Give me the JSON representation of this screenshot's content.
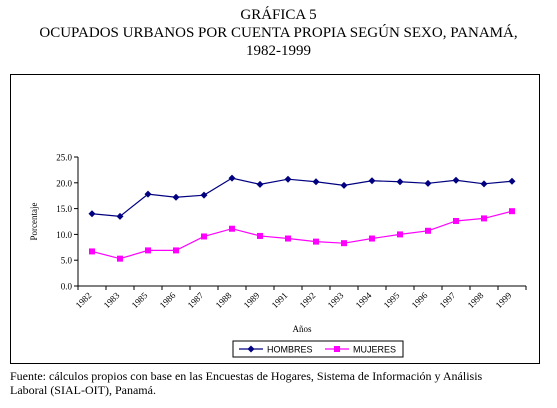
{
  "header": {
    "title_line1": "GRÁFICA 5",
    "title_line2": "OCUPADOS URBANOS POR CUENTA PROPIA SEGÚN SEXO, PANAMÁ,",
    "title_line3": "1982-1999"
  },
  "footnote": {
    "line1": "Fuente: cálculos propios con base en las Encuestas de Hogares, Sistema de Información y Análisis",
    "line2": "Laboral (SIAL-OIT), Panamá."
  },
  "colors": {
    "hombres": "#000080",
    "mujeres": "#ff00ff",
    "axis": "#000000"
  },
  "chart_data": {
    "type": "line",
    "title": "OCUPADOS URBANOS POR CUENTA PROPIA SEGÚN SEXO, PANAMÁ, 1982-1999",
    "xlabel": "Años",
    "ylabel": "Porcentaje",
    "categories": [
      "1982",
      "1983",
      "1985",
      "1986",
      "1987",
      "1988",
      "1989",
      "1991",
      "1992",
      "1993",
      "1994",
      "1995",
      "1996",
      "1997",
      "1998",
      "1999"
    ],
    "series": [
      {
        "name": "HOMBRES",
        "marker": "diamond",
        "values": [
          14.0,
          13.5,
          17.8,
          17.2,
          17.6,
          20.9,
          19.7,
          20.7,
          20.2,
          19.5,
          20.4,
          20.2,
          19.9,
          20.5,
          19.8,
          20.3
        ]
      },
      {
        "name": "MUJERES",
        "marker": "square",
        "values": [
          6.7,
          5.3,
          6.9,
          6.9,
          9.6,
          11.1,
          9.7,
          9.2,
          8.6,
          8.3,
          9.2,
          10.0,
          10.7,
          12.6,
          13.1,
          14.5
        ]
      }
    ],
    "ylim": [
      0,
      25
    ],
    "yticks": [
      "0.0",
      "5.0",
      "10.0",
      "15.0",
      "20.0",
      "25.0"
    ],
    "grid": false,
    "legend": "bottom-center"
  }
}
